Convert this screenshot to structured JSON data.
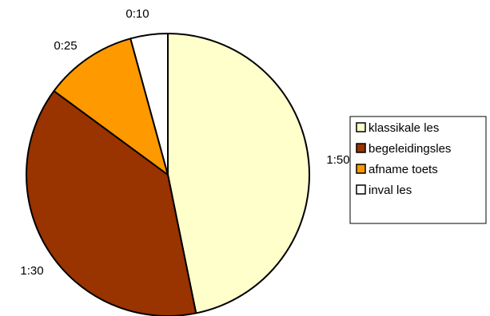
{
  "chart_data": {
    "type": "pie",
    "categories": [
      "klassikale les",
      "begeleidingsles",
      "afname toets",
      "inval les"
    ],
    "values": [
      110,
      90,
      25,
      10
    ],
    "data_labels": [
      "1:50",
      "1:30",
      "0:25",
      "0:10"
    ],
    "colors": [
      "#FFFFCC",
      "#993300",
      "#FF9900",
      "#FFFFFF"
    ],
    "start_angle_deg": 0,
    "direction": "clockwise",
    "legend_position": "right",
    "title": "",
    "xlabel": "",
    "ylabel": ""
  }
}
